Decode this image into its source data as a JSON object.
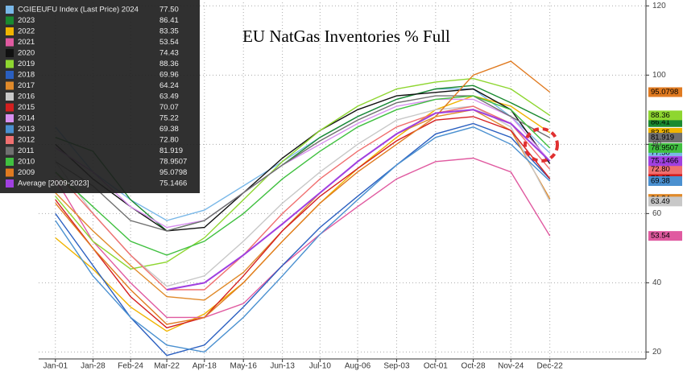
{
  "chart_data": {
    "type": "line",
    "title": "EU NatGas Inventories % Full",
    "x": [
      0,
      27,
      54,
      80,
      107,
      135,
      163,
      190,
      217,
      245,
      273,
      300,
      327,
      355
    ],
    "xticks": [
      {
        "value": 0,
        "label": "Jan-01"
      },
      {
        "value": 27,
        "label": "Jan-28"
      },
      {
        "value": 54,
        "label": "Feb-24"
      },
      {
        "value": 80,
        "label": "Mar-22"
      },
      {
        "value": 107,
        "label": "Apr-18"
      },
      {
        "value": 135,
        "label": "May-16"
      },
      {
        "value": 163,
        "label": "Jun-13"
      },
      {
        "value": 190,
        "label": "Jul-10"
      },
      {
        "value": 217,
        "label": "Aug-06"
      },
      {
        "value": 245,
        "label": "Sep-03"
      },
      {
        "value": 273,
        "label": "Oct-01"
      },
      {
        "value": 300,
        "label": "Oct-28"
      },
      {
        "value": 327,
        "label": "Nov-24"
      },
      {
        "value": 355,
        "label": "Dec-22"
      }
    ],
    "xlim": [
      -12,
      424
    ],
    "ylim": [
      18,
      121
    ],
    "yticks": [
      20,
      40,
      60,
      80,
      100,
      120
    ],
    "grid": true,
    "series": [
      {
        "name": "CGIEEUFU Index (Last Price) 2024",
        "last": "77.50",
        "color": "#7ab8e8",
        "values": [
          85,
          72,
          64,
          58,
          61,
          68,
          75,
          82,
          88,
          93,
          96,
          96,
          88,
          77.5
        ]
      },
      {
        "name": "2023",
        "last": "86.41",
        "color": "#1a8a30",
        "values": [
          82,
          78,
          64,
          55,
          58,
          66,
          74,
          82,
          88,
          93,
          96,
          97,
          92,
          86.41
        ]
      },
      {
        "name": "2022",
        "last": "83.35",
        "color": "#f0b400",
        "values": [
          53,
          44,
          33,
          26,
          31,
          40,
          52,
          63,
          73,
          82,
          90,
          94,
          91,
          83.35
        ]
      },
      {
        "name": "2021",
        "last": "53.54",
        "color": "#e05aa0",
        "values": [
          70,
          52,
          40,
          30,
          30,
          34,
          45,
          54,
          62,
          70,
          75,
          76,
          72,
          53.54
        ]
      },
      {
        "name": "2020",
        "last": "74.43",
        "color": "#111111",
        "values": [
          80,
          70,
          62,
          55,
          56,
          66,
          76,
          84,
          90,
          94,
          95,
          96,
          90,
          74.43
        ]
      },
      {
        "name": "2019",
        "last": "88.36",
        "color": "#8ed630",
        "values": [
          65,
          52,
          44,
          46,
          53,
          64,
          75,
          84,
          91,
          96,
          98,
          99,
          96,
          88.36
        ]
      },
      {
        "name": "2018",
        "last": "69.96",
        "color": "#2a5fc0",
        "values": [
          60,
          45,
          30,
          19,
          22,
          33,
          45,
          56,
          65,
          74,
          83,
          86,
          82,
          69.96
        ]
      },
      {
        "name": "2017",
        "last": "64.24",
        "color": "#e08a2a",
        "values": [
          66,
          55,
          45,
          36,
          35,
          43,
          55,
          66,
          75,
          83,
          88,
          90,
          84,
          64.24
        ]
      },
      {
        "name": "2016",
        "last": "63.49",
        "color": "#c8c8c8",
        "values": [
          75,
          60,
          48,
          39,
          42,
          52,
          63,
          72,
          80,
          87,
          90,
          91,
          85,
          63.49
        ]
      },
      {
        "name": "2015",
        "last": "70.07",
        "color": "#d42020",
        "values": [
          64,
          50,
          36,
          27,
          30,
          42,
          55,
          65,
          73,
          81,
          87,
          88,
          84,
          70.07
        ]
      },
      {
        "name": "2014",
        "last": "75.22",
        "color": "#d890f0",
        "values": [
          79,
          72,
          62,
          56,
          58,
          66,
          74,
          80,
          86,
          91,
          93,
          93,
          88,
          75.22
        ]
      },
      {
        "name": "2013",
        "last": "69.38",
        "color": "#4a90d0",
        "values": [
          58,
          42,
          30,
          22,
          20,
          30,
          42,
          54,
          64,
          74,
          82,
          85,
          80,
          69.38
        ]
      },
      {
        "name": "2012",
        "last": "72.80",
        "color": "#f07070",
        "values": [
          72,
          60,
          48,
          38,
          38,
          48,
          60,
          70,
          78,
          85,
          89,
          91,
          86,
          72.8
        ]
      },
      {
        "name": "2011",
        "last": "81.919",
        "color": "#707070",
        "values": [
          75,
          68,
          58,
          55,
          58,
          66,
          74,
          81,
          87,
          92,
          94,
          94,
          88,
          81.919
        ]
      },
      {
        "name": "2010",
        "last": "78.9507",
        "color": "#40c040",
        "values": [
          72,
          62,
          52,
          48,
          52,
          60,
          70,
          78,
          85,
          90,
          93,
          94,
          90,
          78.9507
        ]
      },
      {
        "name": "2009",
        "last": "95.0798",
        "color": "#e07a20",
        "values": [
          63,
          50,
          38,
          28,
          30,
          40,
          52,
          63,
          72,
          80,
          88,
          100,
          104,
          95.0798
        ]
      },
      {
        "name": "Average  [2009-2023]",
        "last": "75.1466",
        "color": "#a040e0",
        "values": [
          null,
          null,
          null,
          38,
          40,
          48,
          57,
          66,
          75,
          83,
          89,
          90,
          86,
          75.1466
        ]
      }
    ]
  }
}
